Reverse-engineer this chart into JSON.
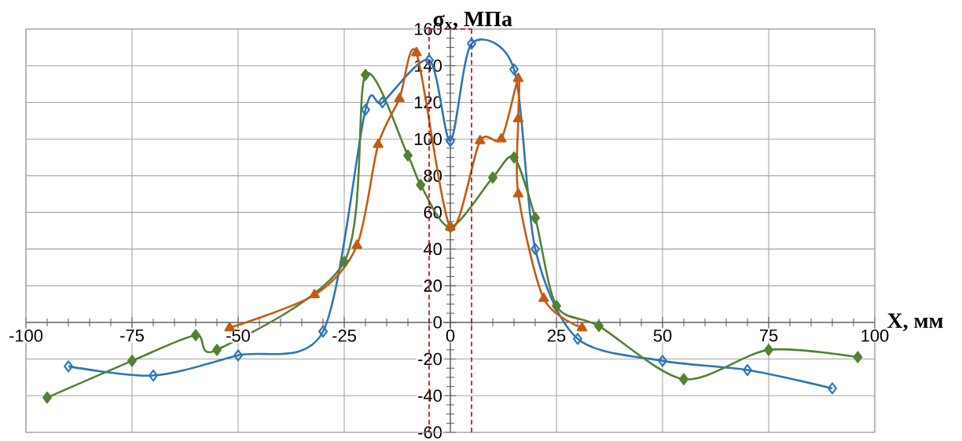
{
  "chart_data": {
    "type": "line",
    "xlabel": "X, мм",
    "ylabel": "σ$_{x}$, МПа",
    "xlim": [
      -100,
      100
    ],
    "ylim": [
      -60,
      160
    ],
    "xticks": [
      -100,
      -75,
      -50,
      -25,
      0,
      25,
      50,
      75,
      100
    ],
    "yticks": [
      -60,
      -40,
      -20,
      0,
      20,
      40,
      60,
      80,
      100,
      120,
      140,
      160
    ],
    "grid": true,
    "line_style": "solid",
    "series": [
      {
        "color": "#2e75b6",
        "marker": "diamond",
        "x": [
          -90,
          -70,
          -50,
          -30,
          -20,
          -16,
          -5,
          0,
          5,
          15,
          20,
          30,
          50,
          70,
          90
        ],
        "values": [
          -24,
          -29,
          -18,
          -5,
          116,
          120,
          143,
          99,
          152,
          138,
          40,
          -9,
          -21,
          -26,
          -36
        ]
      },
      {
        "color": "#c55a11",
        "marker": "triangle",
        "x": [
          -52,
          -32,
          -22,
          -17,
          -12,
          -8,
          0,
          7,
          12,
          16,
          16,
          16,
          22,
          31
        ],
        "values": [
          -3,
          15,
          42,
          97,
          122,
          147,
          52,
          99,
          100,
          133,
          111,
          70,
          13,
          -3
        ]
      },
      {
        "color": "#538135",
        "marker": "diamond",
        "x": [
          -95,
          -75,
          -60,
          -55,
          -25,
          -20,
          -10,
          -7,
          0,
          10,
          15,
          20,
          25,
          35,
          55,
          75,
          96
        ],
        "values": [
          -41,
          -21,
          -7,
          -15,
          33,
          135,
          91,
          75,
          52,
          79,
          90,
          57,
          9,
          -2,
          -31,
          -15,
          -19
        ]
      }
    ],
    "ref_lines": [
      {
        "axis": "x",
        "value": -5,
        "color": "#c00000",
        "line_style": "dashed"
      },
      {
        "axis": "x",
        "value": 5,
        "color": "#c00000",
        "line_style": "dashed"
      }
    ]
  }
}
